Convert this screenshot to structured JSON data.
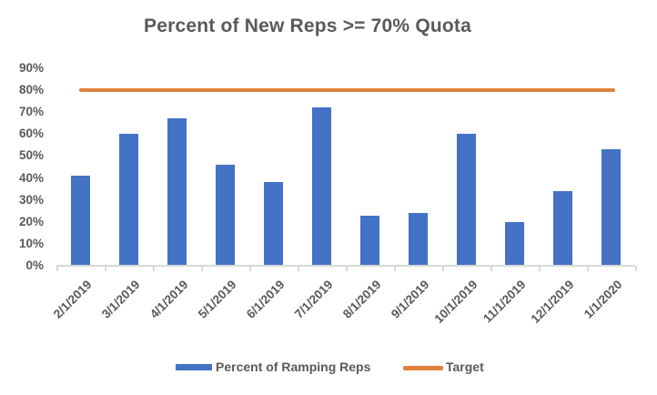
{
  "chart_data": {
    "type": "bar",
    "title": "Percent of New Reps >= 70% Quota",
    "categories": [
      "2/1/2019",
      "3/1/2019",
      "4/1/2019",
      "5/1/2019",
      "6/1/2019",
      "7/1/2019",
      "8/1/2019",
      "9/1/2019",
      "10/1/2019",
      "11/1/2019",
      "12/1/2019",
      "1/1/2020"
    ],
    "series": [
      {
        "name": "Percent of Ramping Reps",
        "type": "bar",
        "values": [
          41,
          60,
          67,
          46,
          38,
          72,
          23,
          24,
          60,
          20,
          34,
          53
        ]
      },
      {
        "name": "Target",
        "type": "line",
        "constant_value": 80
      }
    ],
    "unit": "%",
    "ylim": [
      0,
      90
    ],
    "y_tick_step": 10,
    "y_tick_labels": [
      "0%",
      "10%",
      "20%",
      "30%",
      "40%",
      "50%",
      "60%",
      "70%",
      "80%",
      "90%"
    ],
    "grid": false,
    "legend_position": "bottom",
    "x_tick_label_rotation_deg": 45
  },
  "legend": {
    "items": [
      {
        "label": "Percent of Ramping Reps",
        "swatch": "bar"
      },
      {
        "label": "Target",
        "swatch": "line"
      }
    ]
  },
  "colors": {
    "bar_fill": "#4472C4",
    "target_line": "#E0813C",
    "title_text": "#595959",
    "axis_text": "#595959",
    "axis_line": "#D9D9D9",
    "background": "#FFFFFF"
  }
}
